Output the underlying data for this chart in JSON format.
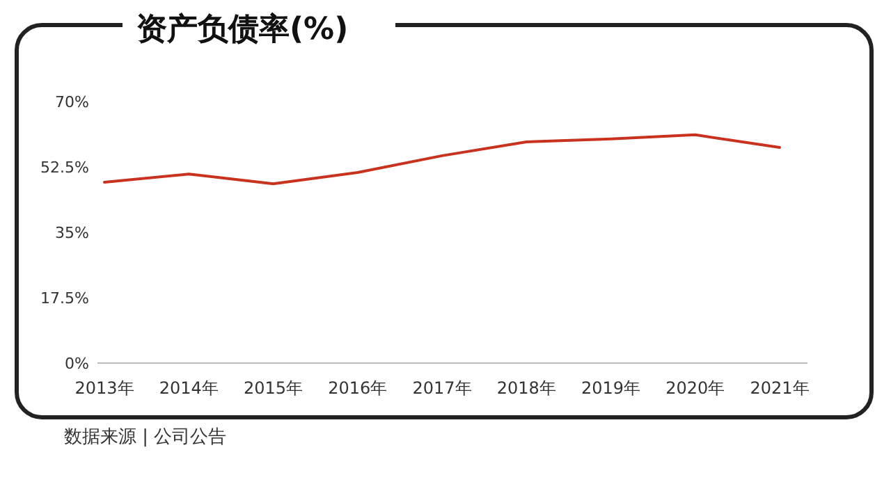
{
  "chart_data": {
    "type": "line",
    "title": "资产负债率(%)",
    "categories": [
      "2013年",
      "2014年",
      "2015年",
      "2016年",
      "2017年",
      "2018年",
      "2019年",
      "2020年",
      "2021年"
    ],
    "series": [
      {
        "color": "#c8321e",
        "values": [
          48.4,
          50.6,
          48.0,
          51.0,
          55.5,
          59.2,
          60.0,
          61.1,
          57.7
        ]
      }
    ],
    "ylim": [
      0,
      70
    ],
    "yticks": [
      {
        "value": 0,
        "label": "0%"
      },
      {
        "value": 17.5,
        "label": "17.5%"
      },
      {
        "value": 35,
        "label": "35%"
      },
      {
        "value": 52.5,
        "label": "52.5%"
      },
      {
        "value": 70,
        "label": "70%"
      }
    ],
    "annotations": [
      "数据来源 | 公司公告"
    ],
    "grid": false,
    "marker": "none",
    "line_style": "solid"
  }
}
